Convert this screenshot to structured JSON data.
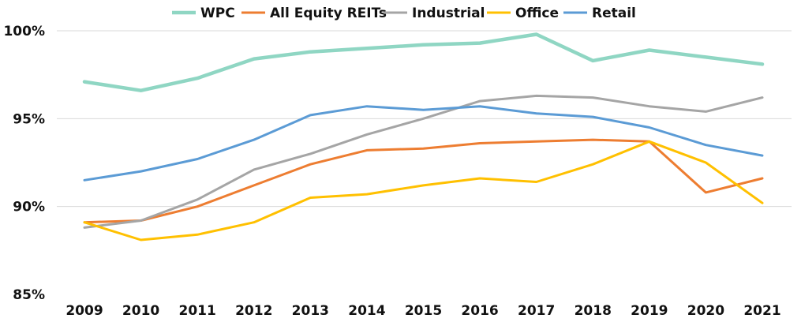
{
  "chart_data": {
    "type": "line",
    "title": "",
    "xlabel": "",
    "ylabel": "",
    "categories": [
      "2009",
      "2010",
      "2011",
      "2012",
      "2013",
      "2014",
      "2015",
      "2016",
      "2017",
      "2018",
      "2019",
      "2020",
      "2021"
    ],
    "ylim": [
      85,
      100
    ],
    "yticks": [
      85,
      90,
      95,
      100
    ],
    "ytick_labels": [
      "85%",
      "90%",
      "95%",
      "100%"
    ],
    "grid": true,
    "legend_position": "top-center",
    "series": [
      {
        "name": "WPC",
        "color": "#8fd6c3",
        "values": [
          97.1,
          96.6,
          97.3,
          98.4,
          98.8,
          99.0,
          99.2,
          99.3,
          99.8,
          98.3,
          98.9,
          98.5,
          98.1
        ]
      },
      {
        "name": "All Equity REITs",
        "color": "#ed7d31",
        "values": [
          89.1,
          89.2,
          90.0,
          91.2,
          92.4,
          93.2,
          93.3,
          93.6,
          93.7,
          93.8,
          93.7,
          90.8,
          91.6
        ]
      },
      {
        "name": "Industrial",
        "color": "#a5a5a5",
        "values": [
          88.8,
          89.2,
          90.4,
          92.1,
          93.0,
          94.1,
          95.0,
          96.0,
          96.3,
          96.2,
          95.7,
          95.4,
          96.2
        ]
      },
      {
        "name": "Office",
        "color": "#ffc000",
        "values": [
          89.1,
          88.1,
          88.4,
          89.1,
          90.5,
          90.7,
          91.2,
          91.6,
          91.4,
          92.4,
          93.7,
          92.5,
          90.2
        ]
      },
      {
        "name": "Retail",
        "color": "#5b9bd5",
        "values": [
          91.5,
          92.0,
          92.7,
          93.8,
          95.2,
          95.7,
          95.5,
          95.7,
          95.3,
          95.1,
          94.5,
          93.5,
          92.9
        ]
      }
    ]
  }
}
